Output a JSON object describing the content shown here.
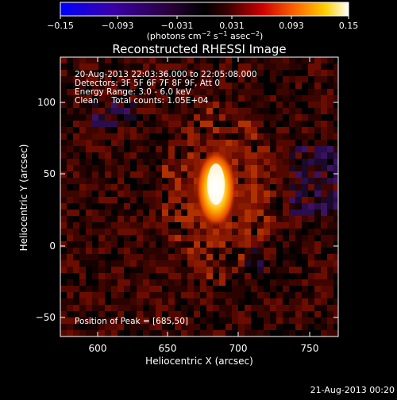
{
  "colorbar": {
    "ticks": [
      "−0.15",
      "−0.093",
      "−0.031",
      "0.031",
      "0.093",
      "0.15"
    ],
    "units_prefix": "(photons cm",
    "units_exp1": "−2",
    "units_mid": " s",
    "units_exp2": "−1",
    "units_mid2": " asec",
    "units_exp3": "−2",
    "units_suffix": ")",
    "colors": [
      "#0000ff",
      "#3a00a8",
      "#2a003a",
      "#000000",
      "#3a0000",
      "#cc0000",
      "#ff6a00",
      "#ffd000",
      "#ffffff"
    ]
  },
  "plot": {
    "title": "Reconstructed RHESSI Image",
    "info_lines": [
      "20-Aug-2013 22:03:36.000 to 22:05:08.000",
      "Detectors: 3F 5F 6F 7F 8F 9F, Att 0",
      "Energy Range: 3.0 - 6.0 keV",
      "Clean     Total counts: 1.05E+04"
    ],
    "peak_label": "Position of Peak = [685,50]",
    "xlabel": "Heliocentric X (arcsec)",
    "ylabel": "Heliocentric Y (arcsec)",
    "xticks": [
      "600",
      "650",
      "700",
      "750"
    ],
    "yticks": [
      "100",
      "50",
      "0",
      "−50"
    ]
  },
  "footer": {
    "timestamp": "21-Aug-2013 00:20"
  }
}
